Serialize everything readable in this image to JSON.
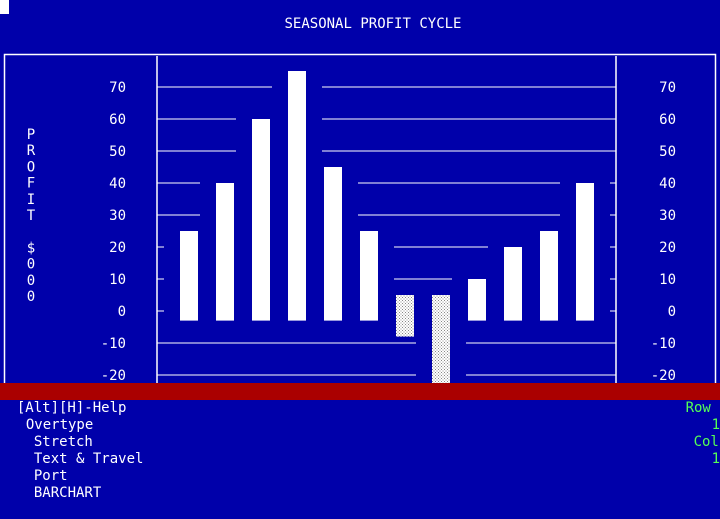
{
  "chart_data": {
    "type": "bar",
    "title": "SEASONAL PROFIT CYCLE",
    "ylabel": "PROFIT $000",
    "ylabel_chars": [
      "P",
      "R",
      "O",
      "F",
      "I",
      "T",
      "",
      "$",
      "0",
      "0",
      "0"
    ],
    "yticks": [
      70,
      60,
      50,
      40,
      30,
      20,
      10,
      0,
      -10,
      -20
    ],
    "ylim": [
      -20,
      70
    ],
    "grid": true,
    "values": [
      25,
      40,
      60,
      75,
      45,
      25,
      5,
      5,
      10,
      20,
      25,
      40
    ],
    "negative_extent": [
      -3,
      -3,
      -3,
      -3,
      -3,
      -3,
      -8,
      -23,
      -3,
      -3,
      -3,
      -3
    ],
    "highlighted_bars": [
      6,
      7
    ],
    "colors": {
      "bar": "#ffffff",
      "highlight_pattern": "#aaaaaa",
      "background": "#0000aa",
      "frame": "#ffffff"
    }
  },
  "status_bar": {
    "help": "[Alt][H]-Help",
    "mode": "Overtype",
    "stretch": "Stretch",
    "text_travel": "Text & Travel",
    "port": "Port",
    "program": "BARCHART",
    "row_label": "Row",
    "row_value": "1",
    "col_label": "Col",
    "col_value": "1"
  }
}
